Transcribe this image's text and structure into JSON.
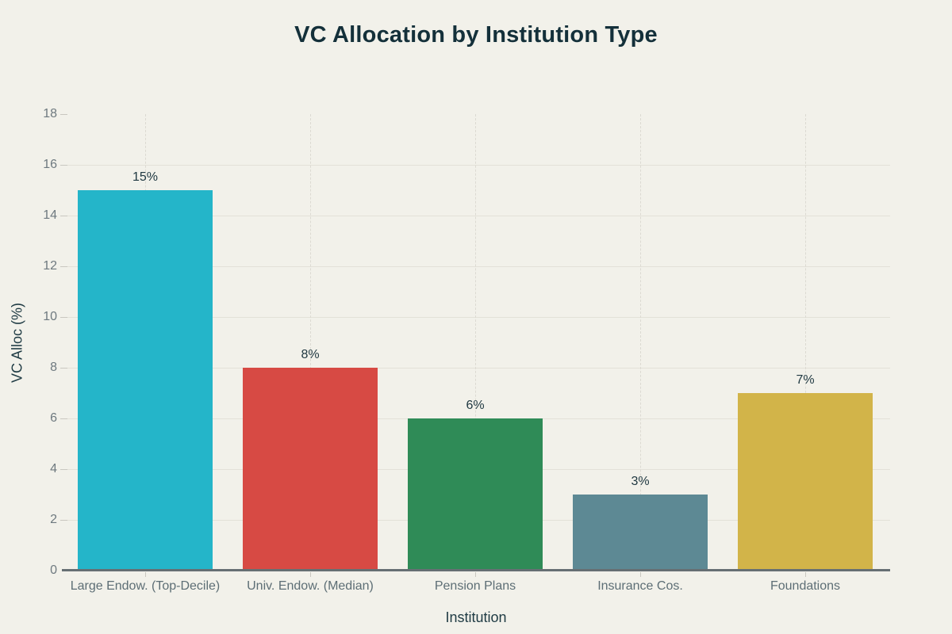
{
  "chart_data": {
    "type": "bar",
    "title": "VC Allocation by Institution Type",
    "xlabel": "Institution",
    "ylabel": "VC Alloc (%)",
    "categories": [
      "Large Endow. (Top-Decile)",
      "Univ. Endow. (Median)",
      "Pension Plans",
      "Insurance Cos.",
      "Foundations"
    ],
    "values": [
      15,
      8,
      6,
      3,
      7
    ],
    "value_labels": [
      "15%",
      "8%",
      "6%",
      "3%",
      "7%"
    ],
    "bar_colors": [
      "#24b5c9",
      "#d74a44",
      "#2f8b57",
      "#5d8994",
      "#d2b449"
    ],
    "ylim": [
      0,
      18
    ],
    "ytick_step": 2,
    "ytick_labels": [
      "0",
      "2",
      "4",
      "6",
      "8",
      "10",
      "12",
      "14",
      "16",
      "18"
    ],
    "grid": true,
    "legend": false
  },
  "colors": {
    "page_bg": "#f2f1ea",
    "title_text": "#14303a",
    "axis_title_text": "#1e3a43",
    "ytick_text": "#6e797f",
    "category_text": "#5d6e75",
    "value_text": "#1e3740",
    "hgrid": "#e3e1d8",
    "vgrid": "#dcdad2",
    "tick_mark": "#c9c7c0",
    "axis_line": "#666f73"
  }
}
